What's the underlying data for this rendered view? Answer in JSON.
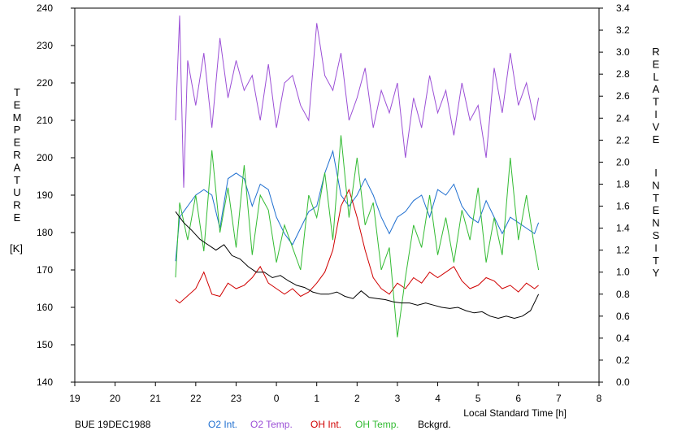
{
  "chart_data": {
    "type": "line",
    "station_label": "BUE 19DEC1988",
    "xlabel": "Local Standard Time [h]",
    "x_ticks": [
      "19",
      "20",
      "21",
      "22",
      "23",
      "0",
      "1",
      "2",
      "3",
      "4",
      "5",
      "6",
      "7",
      "8"
    ],
    "left_axis": {
      "label_letters": [
        "T",
        "E",
        "M",
        "P",
        "E",
        "R",
        "A",
        "T",
        "U",
        "R",
        "E"
      ],
      "unit": "[K]",
      "ylim": [
        140,
        240
      ],
      "ticks": [
        "140",
        "150",
        "160",
        "170",
        "180",
        "190",
        "200",
        "210",
        "220",
        "230",
        "240"
      ]
    },
    "right_axis": {
      "label_letters_1": [
        "R",
        "E",
        "L",
        "A",
        "T",
        "I",
        "V",
        "E"
      ],
      "label_letters_2": [
        "I",
        "N",
        "T",
        "E",
        "N",
        "S",
        "I",
        "T",
        "Y"
      ],
      "ylim": [
        0.0,
        3.4
      ],
      "ticks": [
        "0.0",
        "0.2",
        "0.4",
        "0.6",
        "0.8",
        "1.0",
        "1.2",
        "1.4",
        "1.6",
        "1.8",
        "2.0",
        "2.2",
        "2.4",
        "2.6",
        "2.8",
        "3.0",
        "3.2",
        "3.4"
      ]
    },
    "series": [
      {
        "name": "O2 Int.",
        "axis": "right",
        "color": "#1f6fd0",
        "x": [
          21.5,
          21.6,
          21.8,
          22.0,
          22.2,
          22.4,
          22.6,
          22.8,
          23.0,
          23.2,
          23.4,
          23.6,
          23.8,
          24.0,
          24.2,
          24.4,
          24.6,
          24.8,
          25.0,
          25.2,
          25.4,
          25.6,
          25.8,
          26.0,
          26.2,
          26.4,
          26.6,
          26.8,
          27.0,
          27.2,
          27.4,
          27.6,
          27.8,
          28.0,
          28.2,
          28.4,
          28.6,
          28.8,
          29.0,
          29.2,
          29.4,
          29.6,
          29.8,
          30.0,
          30.2,
          30.4,
          30.5
        ],
        "values": [
          1.1,
          1.5,
          1.6,
          1.7,
          1.75,
          1.7,
          1.4,
          1.85,
          1.9,
          1.85,
          1.6,
          1.8,
          1.75,
          1.5,
          1.35,
          1.25,
          1.4,
          1.55,
          1.6,
          1.9,
          2.1,
          1.7,
          1.6,
          1.7,
          1.85,
          1.7,
          1.5,
          1.35,
          1.5,
          1.55,
          1.65,
          1.7,
          1.5,
          1.75,
          1.7,
          1.8,
          1.6,
          1.5,
          1.45,
          1.65,
          1.5,
          1.35,
          1.5,
          1.45,
          1.4,
          1.35,
          1.45
        ]
      },
      {
        "name": "O2 Temp.",
        "axis": "left",
        "color": "#9b4fd6",
        "x": [
          21.5,
          21.6,
          21.7,
          21.8,
          22.0,
          22.2,
          22.4,
          22.6,
          22.8,
          23.0,
          23.2,
          23.4,
          23.6,
          23.8,
          24.0,
          24.2,
          24.4,
          24.6,
          24.8,
          25.0,
          25.2,
          25.4,
          25.6,
          25.8,
          26.0,
          26.2,
          26.4,
          26.6,
          26.8,
          27.0,
          27.2,
          27.4,
          27.6,
          27.8,
          28.0,
          28.2,
          28.4,
          28.6,
          28.8,
          29.0,
          29.2,
          29.4,
          29.6,
          29.8,
          30.0,
          30.2,
          30.4,
          30.5
        ],
        "values": [
          210,
          238,
          192,
          226,
          214,
          228,
          208,
          232,
          216,
          226,
          218,
          222,
          210,
          225,
          208,
          220,
          222,
          214,
          210,
          236,
          222,
          218,
          228,
          210,
          216,
          224,
          208,
          218,
          212,
          220,
          200,
          216,
          208,
          222,
          212,
          218,
          206,
          220,
          210,
          214,
          200,
          224,
          212,
          228,
          214,
          220,
          210,
          216
        ]
      },
      {
        "name": "OH Int.",
        "axis": "right",
        "color": "#d00000",
        "x": [
          21.5,
          21.6,
          22.0,
          22.2,
          22.4,
          22.6,
          22.8,
          23.0,
          23.2,
          23.4,
          23.6,
          23.8,
          24.0,
          24.2,
          24.4,
          24.6,
          24.8,
          25.0,
          25.2,
          25.4,
          25.6,
          25.8,
          26.0,
          26.2,
          26.4,
          26.6,
          26.8,
          27.0,
          27.2,
          27.4,
          27.6,
          27.8,
          28.0,
          28.2,
          28.4,
          28.6,
          28.8,
          29.0,
          29.2,
          29.4,
          29.6,
          29.8,
          30.0,
          30.2,
          30.4,
          30.5
        ],
        "values": [
          0.75,
          0.72,
          0.85,
          1.0,
          0.8,
          0.78,
          0.9,
          0.85,
          0.88,
          0.95,
          1.05,
          0.9,
          0.85,
          0.8,
          0.85,
          0.78,
          0.82,
          0.9,
          1.0,
          1.2,
          1.6,
          1.75,
          1.5,
          1.2,
          0.95,
          0.85,
          0.8,
          0.9,
          0.85,
          0.95,
          0.9,
          1.0,
          0.95,
          1.0,
          1.05,
          0.92,
          0.85,
          0.88,
          0.95,
          0.92,
          0.85,
          0.88,
          0.82,
          0.9,
          0.85,
          0.88
        ]
      },
      {
        "name": "OH Temp.",
        "axis": "left",
        "color": "#33bb33",
        "x": [
          21.5,
          21.6,
          21.8,
          22.0,
          22.2,
          22.4,
          22.6,
          22.8,
          23.0,
          23.2,
          23.4,
          23.6,
          23.8,
          24.0,
          24.2,
          24.4,
          24.6,
          24.8,
          25.0,
          25.2,
          25.4,
          25.6,
          25.8,
          26.0,
          26.2,
          26.4,
          26.6,
          26.8,
          27.0,
          27.2,
          27.4,
          27.6,
          27.8,
          28.0,
          28.2,
          28.4,
          28.6,
          28.8,
          29.0,
          29.2,
          29.4,
          29.6,
          29.8,
          30.0,
          30.2,
          30.4,
          30.5
        ],
        "values": [
          168,
          188,
          178,
          190,
          175,
          202,
          180,
          192,
          176,
          198,
          174,
          190,
          186,
          172,
          182,
          176,
          170,
          190,
          184,
          196,
          178,
          206,
          184,
          200,
          182,
          188,
          170,
          176,
          152,
          168,
          182,
          176,
          190,
          174,
          184,
          172,
          186,
          178,
          192,
          172,
          184,
          174,
          200,
          178,
          190,
          176,
          170
        ]
      },
      {
        "name": "Bckgrd.",
        "axis": "right",
        "color": "#000000",
        "x": [
          21.5,
          21.7,
          21.9,
          22.1,
          22.3,
          22.5,
          22.7,
          22.9,
          23.1,
          23.3,
          23.5,
          23.7,
          23.9,
          24.1,
          24.3,
          24.5,
          24.7,
          24.9,
          25.1,
          25.3,
          25.5,
          25.7,
          25.9,
          26.1,
          26.3,
          26.5,
          26.7,
          26.9,
          27.1,
          27.3,
          27.5,
          27.7,
          27.9,
          28.1,
          28.3,
          28.5,
          28.7,
          28.9,
          29.1,
          29.3,
          29.5,
          29.7,
          29.9,
          30.1,
          30.3,
          30.5
        ],
        "values": [
          1.55,
          1.45,
          1.38,
          1.3,
          1.25,
          1.2,
          1.25,
          1.15,
          1.12,
          1.05,
          1.0,
          1.0,
          0.95,
          0.97,
          0.92,
          0.88,
          0.86,
          0.82,
          0.8,
          0.8,
          0.82,
          0.78,
          0.76,
          0.83,
          0.77,
          0.76,
          0.75,
          0.73,
          0.72,
          0.72,
          0.7,
          0.72,
          0.7,
          0.68,
          0.67,
          0.68,
          0.65,
          0.63,
          0.64,
          0.6,
          0.58,
          0.6,
          0.58,
          0.6,
          0.65,
          0.8
        ]
      }
    ]
  }
}
